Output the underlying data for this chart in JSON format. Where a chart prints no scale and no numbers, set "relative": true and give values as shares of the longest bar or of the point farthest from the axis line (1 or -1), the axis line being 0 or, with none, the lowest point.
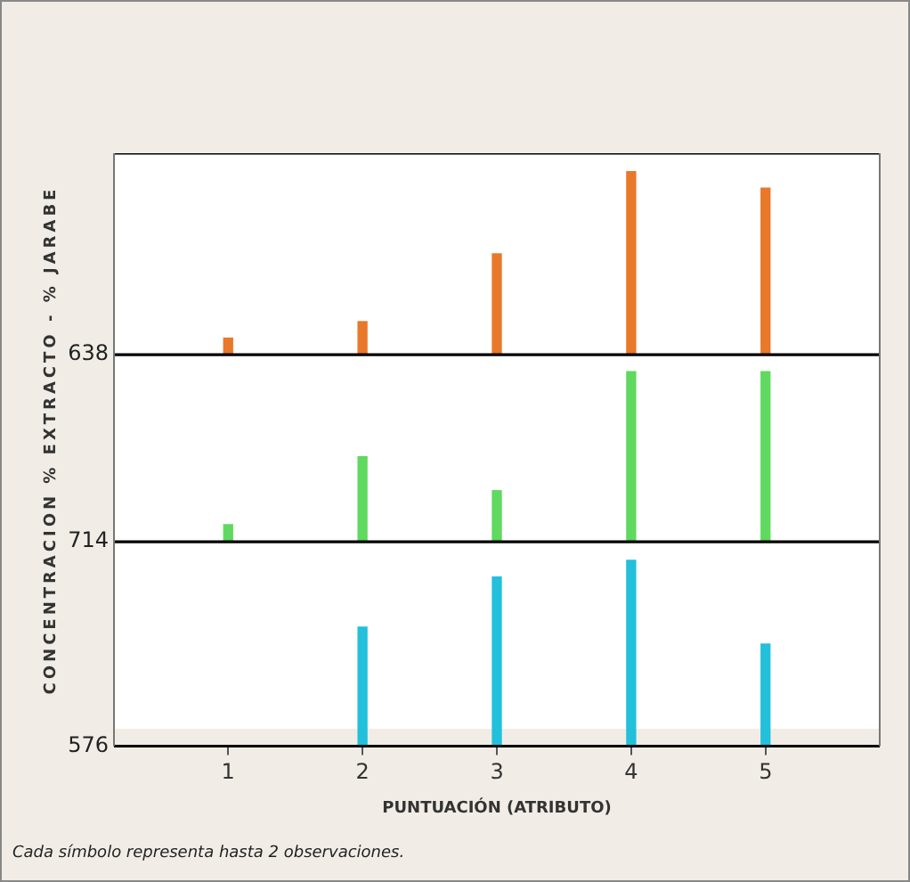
{
  "chart_data": [
    {
      "type": "bar",
      "title": "638",
      "relative": true,
      "x": [
        1,
        2,
        3,
        4,
        5
      ],
      "xlim": [
        0.15,
        5.85
      ],
      "xticks": [
        1,
        2,
        3,
        4,
        5
      ],
      "tick_labels": false,
      "color": "#e8782a",
      "values": [
        0.09,
        0.18,
        0.55,
        1,
        0.91
      ]
    },
    {
      "type": "bar",
      "title": "714",
      "ylabel": "CONCENTRACION % EXTRACTO - % JARABE",
      "relative": true,
      "x": [
        1,
        2,
        3,
        4,
        5
      ],
      "xlim": [
        0.15,
        5.85
      ],
      "xticks": [
        1,
        2,
        3,
        4,
        5
      ],
      "tick_labels": false,
      "color": "#5fd95f",
      "values": [
        0.1,
        0.5,
        0.3,
        1,
        1
      ]
    },
    {
      "type": "bar",
      "title": "576",
      "xlabel": "PUNTUACIÓN (ATRIBUTO)",
      "relative": true,
      "x": [
        1,
        2,
        3,
        4,
        5
      ],
      "xlim": [
        0.15,
        5.85
      ],
      "xticks": [
        1,
        2,
        3,
        4,
        5
      ],
      "tick_labels": "x",
      "color": "#22c0da",
      "values": [
        0,
        0.64,
        0.91,
        1,
        0.55
      ],
      "annotations": [
        "Cada símbolo representa hasta 2 observaciones."
      ]
    }
  ]
}
